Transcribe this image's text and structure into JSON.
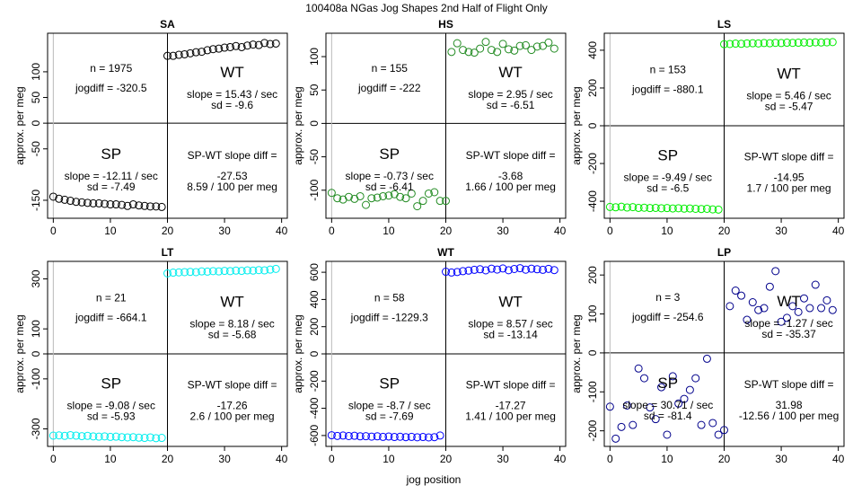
{
  "figure": {
    "title": "100408a    NGas Jog Shapes 2nd Half of Flight Only",
    "xlabel": "jog position",
    "ylabel": "approx. per meg"
  },
  "chart_data": [
    {
      "type": "scatter",
      "title": "SA",
      "color": "#000000",
      "xlim": [
        -1,
        41
      ],
      "ylim": [
        -185,
        175
      ],
      "xticks": [
        0,
        10,
        20,
        30,
        40
      ],
      "yticks": [
        -150,
        -50,
        0,
        50,
        100
      ],
      "n": "n = 1975",
      "jogdiff": "jogdiff = -320.5",
      "wt_label": "WT",
      "wt_slope": "slope = 15.43 / sec",
      "wt_sd": "sd = -9.6",
      "sp_label": "SP",
      "sp_slope": "slope = -12.11 / sec",
      "sp_sd": "sd = -7.49",
      "diff_title": "SP-WT slope diff =",
      "diff_value": "-27.53",
      "diff_rate": "8.59 / 100 per meg",
      "x": [
        0,
        1,
        2,
        3,
        4,
        5,
        6,
        7,
        8,
        9,
        10,
        11,
        12,
        13,
        14,
        15,
        16,
        17,
        18,
        19,
        20,
        21,
        22,
        23,
        24,
        25,
        26,
        27,
        28,
        29,
        30,
        31,
        32,
        33,
        34,
        35,
        36,
        37,
        38,
        39
      ],
      "y": [
        -143,
        -147,
        -149,
        -151,
        -153,
        -154,
        -155,
        -156,
        -156,
        -157,
        -158,
        -158,
        -159,
        -161,
        -158,
        -160,
        -161,
        -162,
        -162,
        -163,
        131,
        131,
        133,
        134,
        136,
        138,
        139,
        142,
        144,
        145,
        147,
        148,
        150,
        148,
        151,
        153,
        152,
        156,
        154,
        155
      ]
    },
    {
      "type": "scatter",
      "title": "HS",
      "color": "#228b22",
      "xlim": [
        -1,
        41
      ],
      "ylim": [
        -142,
        135
      ],
      "xticks": [
        0,
        10,
        20,
        30,
        40
      ],
      "yticks": [
        -100,
        -50,
        0,
        50,
        100
      ],
      "n": "n = 155",
      "jogdiff": "jogdiff = -222",
      "wt_label": "WT",
      "wt_slope": "slope = 2.95 / sec",
      "wt_sd": "sd = -6.51",
      "sp_label": "SP",
      "sp_slope": "slope = -0.73 / sec",
      "sp_sd": "sd = -6.41",
      "diff_title": "SP-WT slope diff =",
      "diff_value": "-3.68",
      "diff_rate": "1.66 / 100 per meg",
      "x": [
        0,
        1,
        2,
        3,
        4,
        5,
        6,
        7,
        8,
        9,
        10,
        11,
        12,
        13,
        14,
        15,
        16,
        17,
        18,
        19,
        20,
        21,
        22,
        23,
        24,
        25,
        26,
        27,
        28,
        29,
        30,
        31,
        32,
        33,
        34,
        35,
        36,
        37,
        38,
        39
      ],
      "y": [
        -104,
        -112,
        -114,
        -110,
        -113,
        -109,
        -122,
        -112,
        -111,
        -109,
        -108,
        -106,
        -110,
        -112,
        -105,
        -124,
        -116,
        -105,
        -103,
        -116,
        -116,
        107,
        120,
        110,
        107,
        106,
        112,
        122,
        110,
        107,
        119,
        111,
        109,
        116,
        117,
        110,
        115,
        116,
        121,
        112
      ]
    },
    {
      "type": "scatter",
      "title": "LS",
      "color": "#00ee00",
      "xlim": [
        -1,
        41
      ],
      "ylim": [
        -490,
        490
      ],
      "xticks": [
        0,
        10,
        20,
        30,
        40
      ],
      "yticks": [
        -400,
        -200,
        0,
        200,
        400
      ],
      "n": "n = 153",
      "jogdiff": "jogdiff = -880.1",
      "wt_label": "WT",
      "wt_slope": "slope = 5.46 / sec",
      "wt_sd": "sd = -5.47",
      "sp_label": "SP",
      "sp_slope": "slope = -9.49 / sec",
      "sp_sd": "sd = -6.5",
      "diff_title": "SP-WT slope diff =",
      "diff_value": "-14.95",
      "diff_rate": "1.7 / 100 per meg",
      "x": [
        0,
        1,
        2,
        3,
        4,
        5,
        6,
        7,
        8,
        9,
        10,
        11,
        12,
        13,
        14,
        15,
        16,
        17,
        18,
        19,
        20,
        21,
        22,
        23,
        24,
        25,
        26,
        27,
        28,
        29,
        30,
        31,
        32,
        33,
        34,
        35,
        36,
        37,
        38,
        39
      ],
      "y": [
        -430,
        -432,
        -429,
        -433,
        -431,
        -435,
        -434,
        -436,
        -435,
        -437,
        -436,
        -438,
        -437,
        -439,
        -438,
        -440,
        -441,
        -440,
        -443,
        -444,
        432,
        433,
        435,
        434,
        436,
        437,
        436,
        438,
        437,
        439,
        438,
        440,
        439,
        440,
        441,
        440,
        442,
        441,
        442,
        443
      ]
    },
    {
      "type": "scatter",
      "title": "LT",
      "color": "#00eeee",
      "xlim": [
        -1,
        41
      ],
      "ylim": [
        -370,
        370
      ],
      "xticks": [
        0,
        10,
        20,
        30,
        40
      ],
      "yticks": [
        -300,
        -100,
        0,
        100,
        300
      ],
      "n": "n = 21",
      "jogdiff": "jogdiff = -664.1",
      "wt_label": "WT",
      "wt_slope": "slope = 8.18 / sec",
      "wt_sd": "sd = -5.68",
      "sp_label": "SP",
      "sp_slope": "slope = -9.08 / sec",
      "sp_sd": "sd = -5.93",
      "diff_title": "SP-WT slope diff =",
      "diff_value": "-17.26",
      "diff_rate": "2.6 / 100 per meg",
      "x": [
        0,
        1,
        2,
        3,
        4,
        5,
        6,
        7,
        8,
        9,
        10,
        11,
        12,
        13,
        14,
        15,
        16,
        17,
        18,
        19,
        20,
        21,
        22,
        23,
        24,
        25,
        26,
        27,
        28,
        29,
        30,
        31,
        32,
        33,
        34,
        35,
        36,
        37,
        38,
        39
      ],
      "y": [
        -327,
        -326,
        -328,
        -325,
        -327,
        -329,
        -328,
        -330,
        -331,
        -330,
        -332,
        -331,
        -333,
        -334,
        -333,
        -335,
        -336,
        -334,
        -337,
        -336,
        322,
        325,
        326,
        327,
        328,
        327,
        330,
        329,
        331,
        330,
        332,
        331,
        333,
        332,
        334,
        333,
        335,
        334,
        337,
        340
      ]
    },
    {
      "type": "scatter",
      "title": "WT",
      "color": "#0000ff",
      "xlim": [
        -1,
        41
      ],
      "ylim": [
        -680,
        680
      ],
      "xticks": [
        0,
        10,
        20,
        30,
        40
      ],
      "yticks": [
        -600,
        -400,
        -200,
        0,
        200,
        400,
        600
      ],
      "n": "n = 58",
      "jogdiff": "jogdiff = -1229.3",
      "wt_label": "WT",
      "wt_slope": "slope = 8.57 / sec",
      "wt_sd": "sd = -13.14",
      "sp_label": "SP",
      "sp_slope": "slope = -8.7 / sec",
      "sp_sd": "sd = -7.69",
      "diff_title": "SP-WT slope diff =",
      "diff_value": "-17.27",
      "diff_rate": "1.41 / 100 per meg",
      "x": [
        0,
        1,
        2,
        3,
        4,
        5,
        6,
        7,
        8,
        9,
        10,
        11,
        12,
        13,
        14,
        15,
        16,
        17,
        18,
        19,
        20,
        21,
        22,
        23,
        24,
        25,
        26,
        27,
        28,
        29,
        30,
        31,
        32,
        33,
        34,
        35,
        36,
        37,
        38,
        39
      ],
      "y": [
        -598,
        -603,
        -600,
        -604,
        -602,
        -606,
        -605,
        -608,
        -606,
        -610,
        -607,
        -611,
        -609,
        -612,
        -610,
        -613,
        -611,
        -614,
        -612,
        -600,
        604,
        598,
        602,
        608,
        612,
        618,
        622,
        614,
        626,
        620,
        628,
        615,
        624,
        630,
        619,
        626,
        622,
        618,
        625,
        616
      ]
    },
    {
      "type": "scatter",
      "title": "LP",
      "color": "#00008b",
      "xlim": [
        -1,
        41
      ],
      "ylim": [
        -240,
        235
      ],
      "xticks": [
        0,
        10,
        20,
        30,
        40
      ],
      "yticks": [
        -200,
        -100,
        0,
        100,
        200
      ],
      "n": "n = 3",
      "jogdiff": "jogdiff = -254.6",
      "wt_label": "WT",
      "wt_slope": "slope = -1.27 / sec",
      "wt_sd": "sd = -35.37",
      "sp_label": "SP",
      "sp_slope": "slope = 30.71 / sec",
      "sp_sd": "sd = -81.4",
      "diff_title": "SP-WT slope diff =",
      "diff_value": "31.98",
      "diff_rate": "-12.56 / 100 per meg",
      "x": [
        0,
        1,
        2,
        3,
        4,
        5,
        6,
        7,
        8,
        9,
        10,
        11,
        12,
        13,
        14,
        15,
        16,
        17,
        18,
        19,
        20,
        21,
        22,
        23,
        24,
        25,
        26,
        27,
        28,
        29,
        30,
        31,
        32,
        33,
        34,
        35,
        36,
        37,
        38,
        39
      ],
      "y": [
        -138,
        -220,
        -190,
        -135,
        -185,
        -40,
        -65,
        -140,
        -170,
        -88,
        -210,
        -60,
        -130,
        -118,
        -95,
        -65,
        -185,
        -15,
        -180,
        -210,
        -198,
        120,
        160,
        147,
        85,
        130,
        110,
        115,
        170,
        210,
        80,
        90,
        120,
        105,
        140,
        115,
        175,
        115,
        135,
        110
      ]
    }
  ]
}
